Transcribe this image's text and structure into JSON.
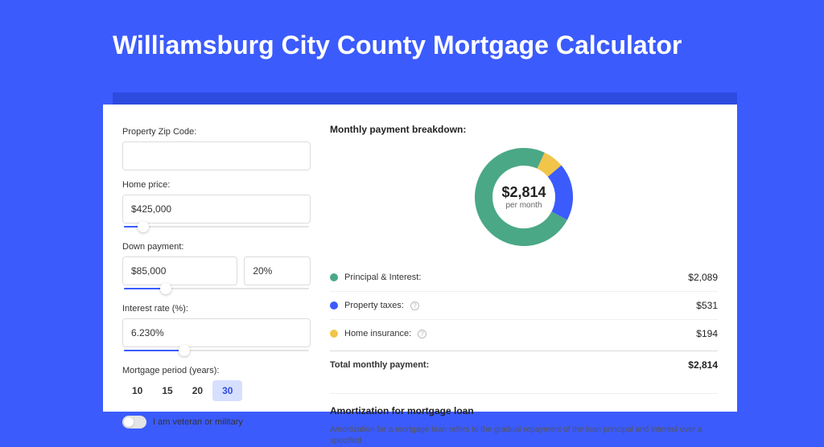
{
  "page": {
    "title": "Williamsburg City County Mortgage Calculator"
  },
  "form": {
    "zip": {
      "label": "Property Zip Code:",
      "value": ""
    },
    "home_price": {
      "label": "Home price:",
      "value": "$425,000",
      "slider_fill_pct": 8,
      "thumb_pct": 8
    },
    "down_payment": {
      "label": "Down payment:",
      "amount": "$85,000",
      "pct": "20%",
      "slider_fill_pct": 20,
      "thumb_pct": 20
    },
    "interest_rate": {
      "label": "Interest rate (%):",
      "value": "6.230%",
      "slider_fill_pct": 30,
      "thumb_pct": 30
    },
    "period": {
      "label": "Mortgage period (years):",
      "options": [
        "10",
        "15",
        "20",
        "30"
      ],
      "selected": "30"
    },
    "veteran": {
      "label": "I am veteran or military",
      "on": false
    }
  },
  "breakdown": {
    "title": "Monthly payment breakdown:",
    "total_amount": "$2,814",
    "total_sub": "per month",
    "donut": {
      "segments": [
        {
          "key": "principal_interest",
          "color": "#4aa886",
          "pct": 74.2
        },
        {
          "key": "property_taxes",
          "color": "#3b5bfd",
          "pct": 18.9
        },
        {
          "key": "home_insurance",
          "color": "#f1c54a",
          "pct": 6.9
        }
      ],
      "stroke_width": 22,
      "radius": 50
    },
    "rows": [
      {
        "label": "Principal & Interest:",
        "color": "#4aa886",
        "value": "$2,089",
        "info": false
      },
      {
        "label": "Property taxes:",
        "color": "#3b5bfd",
        "value": "$531",
        "info": true
      },
      {
        "label": "Home insurance:",
        "color": "#f1c54a",
        "value": "$194",
        "info": true
      }
    ],
    "total_label": "Total monthly payment:",
    "total_value": "$2,814"
  },
  "amortization": {
    "title": "Amortization for mortgage loan",
    "text": "Amortization for a mortgage loan refers to the gradual repayment of the loan principal and interest over a specified"
  },
  "colors": {
    "page_bg": "#3b5bfd",
    "band_bg": "#2e4be0",
    "card_bg": "#ffffff"
  }
}
